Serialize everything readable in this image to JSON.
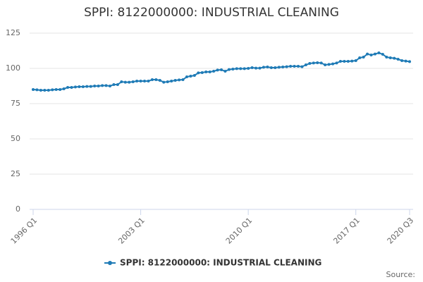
{
  "chart_data": {
    "type": "line",
    "title": "SPPI: 8122000000: INDUSTRIAL CLEANING",
    "source": "Source:",
    "categories": [
      "1996 Q1",
      null,
      null,
      null,
      null,
      null,
      null,
      null,
      null,
      null,
      null,
      null,
      null,
      null,
      null,
      null,
      null,
      null,
      null,
      null,
      null,
      null,
      null,
      null,
      null,
      null,
      null,
      null,
      "2003 Q1",
      null,
      null,
      null,
      null,
      null,
      null,
      null,
      null,
      null,
      null,
      null,
      null,
      null,
      null,
      null,
      null,
      null,
      null,
      null,
      null,
      null,
      null,
      null,
      null,
      null,
      null,
      null,
      "2010 Q1",
      null,
      null,
      null,
      null,
      null,
      null,
      null,
      null,
      null,
      null,
      null,
      null,
      null,
      null,
      null,
      null,
      null,
      null,
      null,
      null,
      null,
      null,
      null,
      null,
      null,
      null,
      null,
      "2017 Q1",
      null,
      null,
      null,
      null,
      null,
      null,
      null,
      null,
      null,
      null,
      null,
      null,
      null,
      "2020 Q3"
    ],
    "series": [
      {
        "name": "SPPI: 8122000000: INDUSTRIAL CLEANING",
        "color": "#1f7bb6",
        "values": [
          85,
          84.8,
          84.5,
          84.5,
          84.5,
          84.8,
          85,
          85,
          85.5,
          86.5,
          86.5,
          86.8,
          87,
          87,
          87.2,
          87.2,
          87.5,
          87.5,
          87.8,
          87.8,
          87.5,
          88.5,
          88.5,
          90.5,
          90.2,
          90.2,
          90.5,
          91,
          91,
          91,
          91,
          92,
          92,
          91.5,
          90.2,
          90.5,
          91,
          91.5,
          91.8,
          92,
          94,
          94.5,
          95,
          96.8,
          97,
          97.5,
          97.5,
          98,
          98.8,
          99,
          98,
          99.2,
          99.5,
          99.8,
          99.8,
          99.8,
          100,
          100.5,
          100.2,
          100.2,
          100.8,
          101,
          100.5,
          100.5,
          100.8,
          101,
          101.2,
          101.5,
          101.5,
          101.5,
          101.2,
          102.5,
          103.5,
          103.8,
          104,
          103.8,
          102.5,
          102.8,
          103.2,
          103.8,
          105,
          105,
          105,
          105.2,
          105.5,
          107.5,
          108,
          110.2,
          109.5,
          110.2,
          111,
          110,
          108,
          107.5,
          107.2,
          106.5,
          105.5,
          105.2,
          104.8
        ]
      }
    ],
    "ylim": [
      0,
      125
    ],
    "yticks": [
      0,
      25,
      50,
      75,
      100,
      125
    ],
    "grid": true
  }
}
